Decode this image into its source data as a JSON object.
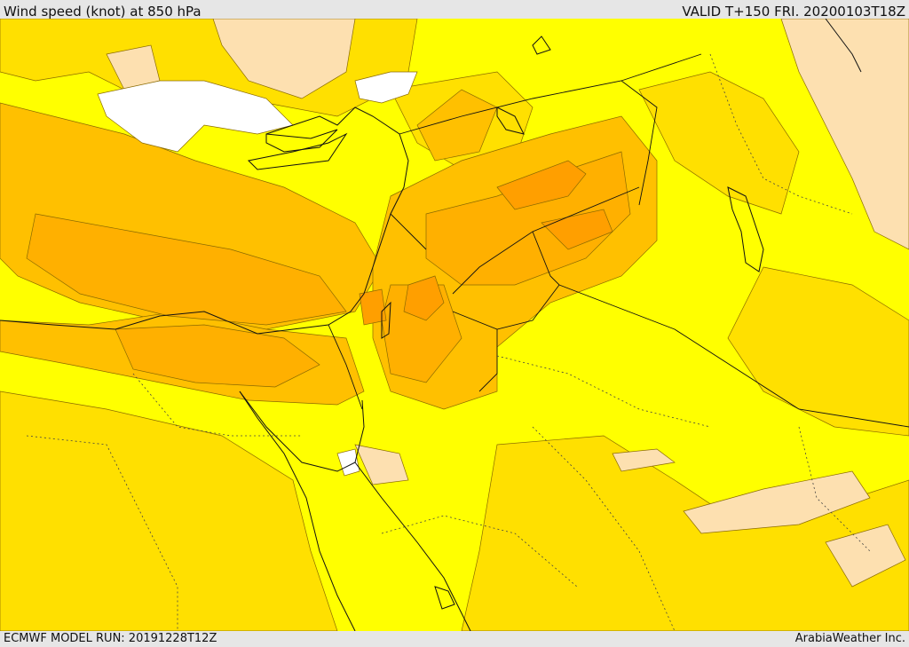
{
  "header": {
    "title": "Wind speed (knot) at 850 hPa",
    "valid": "VALID T+150 FRI. 20200103T18Z"
  },
  "footer": {
    "model_run": "ECMWF MODEL RUN: 20191228T12Z",
    "credit": "ArabiaWeather Inc."
  },
  "palette": {
    "white": "#ffffff",
    "peach": "#fde0b0",
    "yellow": "#ffff00",
    "gold": "#ffe000",
    "amber": "#ffc000",
    "orange": "#ffb000",
    "dark_orange": "#ff9f00",
    "lines": "#333333"
  }
}
